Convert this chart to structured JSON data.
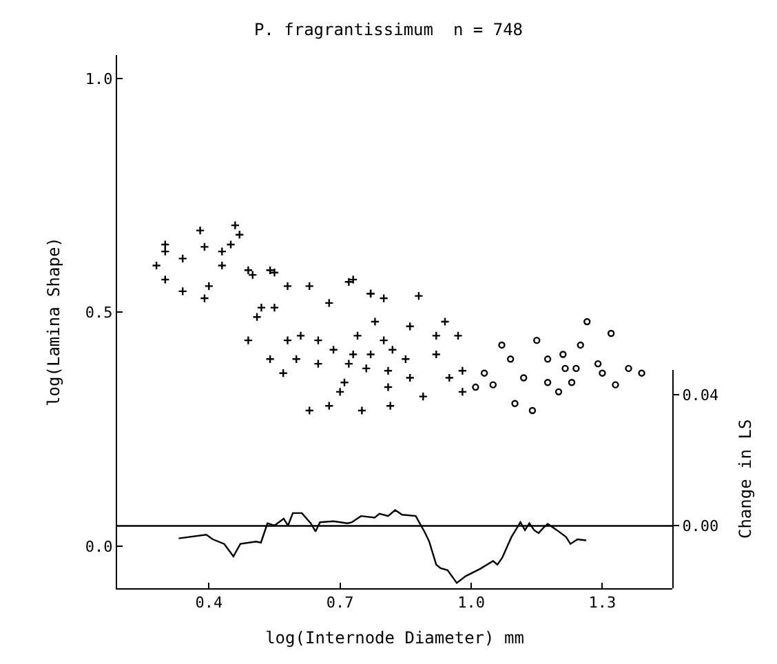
{
  "chart_data": {
    "type": "scatter",
    "title": "P. fragrantissimum  n = 748",
    "xlabel": "log(Internode Diameter) mm",
    "ylabel": "log(Lamina Shape)",
    "y2label": "Change in LS",
    "xlim": [
      0.19,
      1.46
    ],
    "xticks": [
      0.4,
      0.7,
      {
        "value": 1.0,
        "label": "1.0"
      },
      1.3
    ],
    "ylim": [
      -0.09,
      1.05
    ],
    "yticks": [
      {
        "value": 0.0,
        "label": "0.0"
      },
      0.5,
      {
        "value": 1.0,
        "label": "1.0"
      }
    ],
    "y2lim": [
      -0.019,
      0.0476
    ],
    "y2ticks": [
      {
        "value": 0.0,
        "label": "0.00"
      },
      0.04
    ],
    "ref_lines": [
      {
        "axis": "y2",
        "value": 0.0,
        "color": "#000000"
      }
    ],
    "grid": false,
    "series": [
      {
        "marker": "cross",
        "color": "#000000",
        "x": [
          0.3,
          0.28,
          0.38,
          0.46,
          0.47,
          0.34,
          0.3,
          0.39,
          0.43,
          0.49,
          0.54,
          0.58,
          0.72,
          0.88,
          0.63,
          0.52,
          0.49,
          0.54,
          0.57,
          0.63,
          0.675,
          0.75,
          0.815,
          0.89,
          0.7,
          0.72,
          0.8,
          0.78,
          0.86,
          0.94,
          0.97,
          0.95,
          0.98,
          0.98,
          0.61,
          0.675,
          0.77,
          0.73,
          0.81,
          0.86,
          0.92,
          0.685,
          0.74,
          0.6,
          0.65,
          0.82,
          0.55,
          0.3,
          0.34,
          0.39,
          0.45,
          0.43,
          0.4,
          0.5,
          0.55,
          0.77,
          0.8,
          0.92,
          0.85,
          0.76,
          0.71,
          0.65,
          0.58,
          0.51,
          0.77,
          0.73,
          0.81
        ],
        "values": [
          0.645,
          0.6,
          0.675,
          0.686,
          0.666,
          0.545,
          0.57,
          0.53,
          0.63,
          0.59,
          0.59,
          0.556,
          0.565,
          0.535,
          0.556,
          0.51,
          0.44,
          0.4,
          0.37,
          0.29,
          0.3,
          0.29,
          0.3,
          0.32,
          0.33,
          0.39,
          0.44,
          0.48,
          0.47,
          0.48,
          0.45,
          0.36,
          0.375,
          0.33,
          0.45,
          0.52,
          0.54,
          0.57,
          0.34,
          0.36,
          0.41,
          0.42,
          0.45,
          0.4,
          0.44,
          0.42,
          0.51,
          0.63,
          0.615,
          0.64,
          0.645,
          0.6,
          0.556,
          0.58,
          0.585,
          0.54,
          0.53,
          0.45,
          0.4,
          0.38,
          0.35,
          0.39,
          0.44,
          0.49,
          0.41,
          0.41,
          0.375
        ]
      },
      {
        "marker": "circle",
        "color": "#000000",
        "x": [
          1.01,
          1.05,
          1.07,
          1.1,
          1.14,
          1.15,
          1.175,
          1.2,
          1.215,
          1.24,
          1.265,
          1.25,
          1.32,
          1.29,
          1.33,
          1.36,
          1.39,
          1.3,
          1.12,
          1.09,
          1.03,
          1.23,
          1.175,
          1.21
        ],
        "values": [
          0.34,
          0.345,
          0.43,
          0.305,
          0.29,
          0.44,
          0.4,
          0.33,
          0.38,
          0.38,
          0.48,
          0.43,
          0.455,
          0.39,
          0.345,
          0.38,
          0.37,
          0.37,
          0.36,
          0.4,
          0.37,
          0.35,
          0.35,
          0.41
        ]
      },
      {
        "type": "line",
        "axis": "y2",
        "marker": "none",
        "line_style": "solid",
        "color": "#000000",
        "x": [
          0.331,
          0.394,
          0.409,
          0.435,
          0.456,
          0.472,
          0.508,
          0.519,
          0.534,
          0.55,
          0.571,
          0.581,
          0.592,
          0.6125,
          0.633,
          0.644,
          0.654,
          0.685,
          0.717,
          0.727,
          0.748,
          0.779,
          0.79,
          0.81,
          0.826,
          0.842,
          0.873,
          0.894,
          0.904,
          0.92,
          0.93,
          0.946,
          0.967,
          0.9875,
          1.019,
          1.05,
          1.06,
          1.071,
          1.092,
          1.1125,
          1.123,
          1.133,
          1.144,
          1.154,
          1.165,
          1.175,
          1.196,
          1.217,
          1.227,
          1.243,
          1.263
        ],
        "values": [
          -0.0038,
          -0.0027,
          -0.0041,
          -0.0055,
          -0.0093,
          -0.0055,
          -0.0048,
          -0.0051,
          0.0008,
          0.0001,
          0.0022,
          0.0001,
          0.0039,
          0.0039,
          0.0008,
          -0.0017,
          0.0011,
          0.0014,
          0.0008,
          0.0011,
          0.003,
          0.0025,
          0.0037,
          0.003,
          0.0048,
          0.0034,
          0.003,
          -0.002,
          -0.0048,
          -0.0118,
          -0.0129,
          -0.0135,
          -0.0174,
          -0.0153,
          -0.0132,
          -0.0107,
          -0.0118,
          -0.0097,
          -0.0034,
          0.0011,
          -0.0013,
          0.0008,
          -0.0013,
          -0.0022,
          -0.0006,
          0.0006,
          -0.0013,
          -0.0034,
          -0.0055,
          -0.0041,
          -0.0044
        ]
      }
    ]
  }
}
